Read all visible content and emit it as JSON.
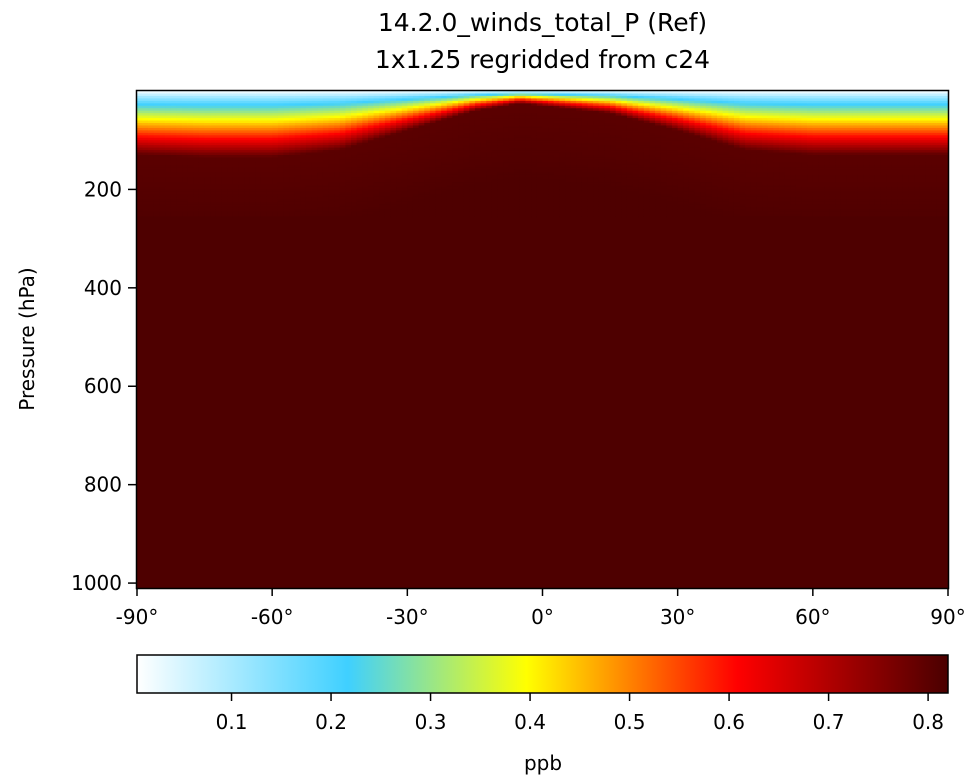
{
  "chart_data": {
    "type": "heatmap",
    "title": "14.2.0_winds_total_P (Ref)",
    "subtitle": "1x1.25 regridded from c24",
    "xlabel": "",
    "ylabel": "Pressure (hPa)",
    "x_axis": {
      "range": [
        -90,
        90
      ],
      "ticks": [
        -90,
        -60,
        -30,
        0,
        30,
        60,
        90
      ],
      "tick_labels": [
        "-90°",
        "-60°",
        "-30°",
        "0°",
        "30°",
        "60°",
        "90°"
      ]
    },
    "y_axis": {
      "range": [
        1010,
        0
      ],
      "inverted": true,
      "ticks": [
        200,
        400,
        600,
        800,
        1000
      ],
      "tick_labels": [
        "200",
        "400",
        "600",
        "800",
        "1000"
      ]
    },
    "colorbar": {
      "label": "ppb",
      "range": [
        0.005,
        0.82
      ],
      "ticks": [
        0.1,
        0.2,
        0.3,
        0.4,
        0.5,
        0.6,
        0.7,
        0.8
      ],
      "tick_labels": [
        "0.1",
        "0.2",
        "0.3",
        "0.4",
        "0.5",
        "0.6",
        "0.7",
        "0.8"
      ],
      "colormap": [
        "#ffffff",
        "#3fd0ff",
        "#ffff00",
        "#ff0000",
        "#4a0000"
      ]
    },
    "field_description": {
      "latitudes": [
        -90,
        -75,
        -60,
        -45,
        -30,
        -15,
        -5,
        0,
        15,
        30,
        45,
        60,
        75,
        90
      ],
      "top_pressure_of_full_value_hPa": [
        130,
        135,
        135,
        120,
        80,
        40,
        25,
        30,
        45,
        80,
        120,
        130,
        130,
        130
      ],
      "surface_to_top_value_ppb": 0.8
    }
  }
}
